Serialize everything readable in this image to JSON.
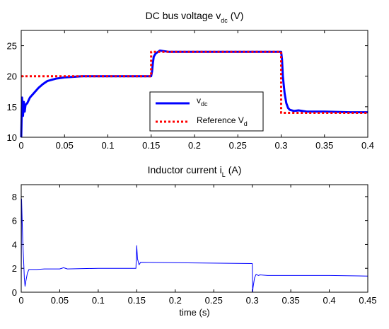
{
  "chart_data": [
    {
      "type": "line",
      "title": "DC bus voltage v",
      "title_sub": "dc",
      "title_unit": "(V)",
      "xlabel": "",
      "ylabel": "",
      "xlim": [
        0,
        0.4
      ],
      "ylim": [
        10,
        27.5
      ],
      "x_ticks": [
        "0",
        "0.05",
        "0.1",
        "0.15",
        "0.2",
        "0.25",
        "0.3",
        "0.35",
        "0.4"
      ],
      "y_ticks": [
        "10",
        "15",
        "20",
        "25"
      ],
      "grid": false,
      "legend_position": "center-right",
      "series": [
        {
          "name": "v",
          "name_sub": "dc",
          "color": "#0000ff",
          "style": "solid",
          "x": [
            0,
            0.001,
            0.002,
            0.003,
            0.004,
            0.005,
            0.007,
            0.01,
            0.015,
            0.02,
            0.025,
            0.03,
            0.04,
            0.05,
            0.06,
            0.07,
            0.1,
            0.15,
            0.151,
            0.152,
            0.153,
            0.155,
            0.158,
            0.16,
            0.165,
            0.17,
            0.2,
            0.25,
            0.3,
            0.301,
            0.302,
            0.304,
            0.306,
            0.308,
            0.31,
            0.315,
            0.32,
            0.33,
            0.35,
            0.38,
            0.4
          ],
          "y": [
            10,
            16.5,
            13.5,
            15.8,
            14.2,
            15.3,
            15.6,
            16.5,
            17.3,
            18.1,
            18.7,
            19.2,
            19.6,
            19.8,
            19.9,
            20,
            20,
            20,
            20.8,
            22.2,
            23.2,
            23.7,
            24,
            24.2,
            24.1,
            24,
            24,
            24,
            24,
            22.8,
            20,
            17.2,
            15.6,
            14.8,
            14.5,
            14.3,
            14.4,
            14.2,
            14.2,
            14.1,
            14.1
          ]
        },
        {
          "name": "Reference V",
          "name_sub": "d",
          "color": "#ff0000",
          "style": "dotted",
          "x": [
            0,
            0.15,
            0.15,
            0.3,
            0.3,
            0.4
          ],
          "y": [
            20,
            20,
            24,
            24,
            14,
            14
          ]
        }
      ]
    },
    {
      "type": "line",
      "title": "Inductor current i",
      "title_sub": "L",
      "title_unit": "(A)",
      "xlabel": "time (s)",
      "ylabel": "",
      "xlim": [
        0,
        0.45
      ],
      "ylim": [
        0,
        9
      ],
      "x_ticks": [
        "0",
        "0.05",
        "0.1",
        "0.15",
        "0.2",
        "0.25",
        "0.3",
        "0.35",
        "0.4",
        "0.45"
      ],
      "y_ticks": [
        "0",
        "2",
        "4",
        "6",
        "8"
      ],
      "grid": false,
      "series": [
        {
          "color": "#0000ff",
          "style": "thin",
          "x": [
            0,
            0.0005,
            0.001,
            0.002,
            0.003,
            0.004,
            0.005,
            0.006,
            0.008,
            0.01,
            0.02,
            0.03,
            0.05,
            0.055,
            0.06,
            0.1,
            0.149,
            0.15,
            0.151,
            0.153,
            0.155,
            0.3,
            0.3005,
            0.301,
            0.303,
            0.305,
            0.308,
            0.31,
            0.32,
            0.35,
            0.4,
            0.45
          ],
          "y": [
            0,
            7.8,
            6.5,
            4.2,
            2.8,
            1.2,
            0.5,
            0.9,
            1.6,
            1.9,
            1.9,
            1.95,
            1.95,
            2.05,
            1.95,
            2,
            2,
            3.9,
            2.8,
            2.3,
            2.5,
            2.4,
            0,
            0.4,
            1.2,
            1.5,
            1.4,
            1.45,
            1.4,
            1.4,
            1.4,
            1.35
          ]
        }
      ]
    }
  ]
}
